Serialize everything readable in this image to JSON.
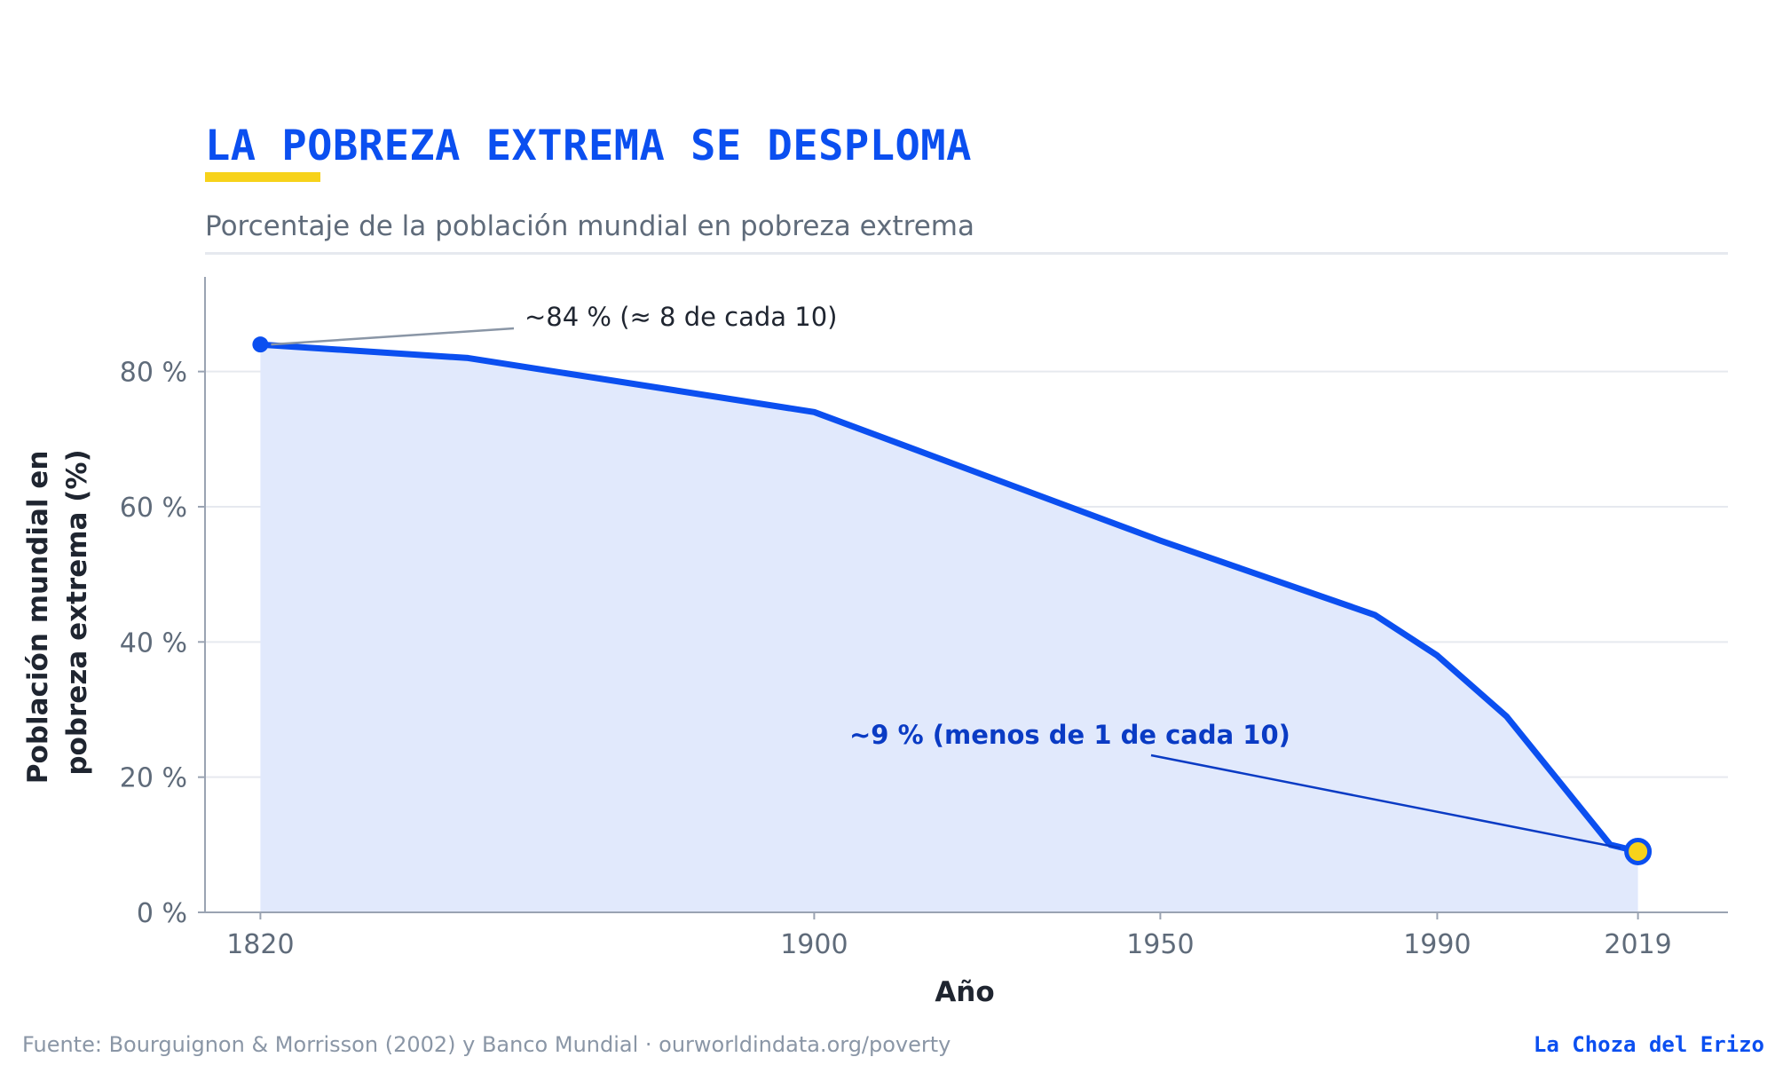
{
  "header": {
    "title": "LA POBREZA EXTREMA SE DESPLOMA",
    "subtitle": "Porcentaje de la población mundial en pobreza extrema"
  },
  "colors": {
    "accent": "#0b4ff0",
    "highlight": "#f7d21a",
    "area_fill": "#e1e9fc",
    "annotation_bold": "#0a3bc4"
  },
  "chart_data": {
    "type": "area",
    "x": [
      1820,
      1850,
      1900,
      1950,
      1981,
      1990,
      2000,
      2015,
      2019
    ],
    "series": [
      {
        "values": [
          84,
          82,
          74,
          55,
          44,
          38,
          29,
          10,
          9
        ]
      }
    ],
    "xlabel": "Año",
    "ylabel_lines": [
      "Población mundial en",
      "pobreza extrema (%)"
    ],
    "x_ticks": [
      1820,
      1900,
      1950,
      1990,
      2019
    ],
    "y_ticks": [
      0,
      20,
      40,
      60,
      80
    ],
    "y_tick_labels": [
      "0 %",
      "20 %",
      "40 %",
      "60 %",
      "80 %"
    ],
    "xlim": [
      1812,
      2032
    ],
    "ylim": [
      0,
      94
    ],
    "grid": "horizontal",
    "annotations": [
      {
        "text": "~84 %  (≈ 8 de cada 10)",
        "x": 1820,
        "y": 84
      },
      {
        "text": "~9 %  (menos de 1 de cada 10)",
        "x": 2019,
        "y": 9
      }
    ]
  },
  "footer": {
    "source": "Fuente:  Bourguignon & Morrisson (2002) y Banco Mundial  ·  ourworldindata.org/poverty",
    "brand": "La Choza del Erizo"
  }
}
